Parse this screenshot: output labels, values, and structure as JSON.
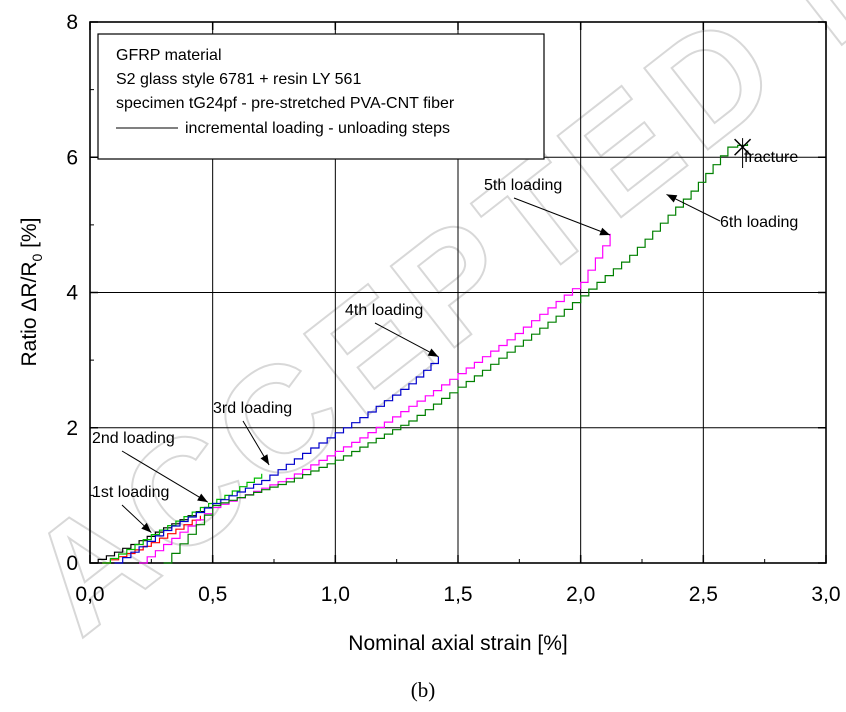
{
  "watermark": "ACCEPTED MANUSCRIPT",
  "caption": "(b)",
  "chart_data": {
    "type": "line",
    "xlabel": "Nominal axial strain [%]",
    "ylabel": "Ratio ΔR/R",
    "ylabel_sub": "0",
    "ylabel_unit": " [%]",
    "xlim": [
      0,
      3.0
    ],
    "ylim": [
      0,
      8
    ],
    "xticks": [
      0,
      0.5,
      1.0,
      1.5,
      2.0,
      2.5,
      3.0
    ],
    "xtick_labels": [
      "0,0",
      "0,5",
      "1,0",
      "1,5",
      "2,0",
      "2,5",
      "3,0"
    ],
    "yticks": [
      0,
      2,
      4,
      6,
      8
    ],
    "ytick_labels": [
      "0",
      "2",
      "4",
      "6",
      "8"
    ],
    "grid": true,
    "legend": {
      "placement": "top-left",
      "lines": [
        "GFRP material",
        "S2 glass style 6781 + resin LY 561",
        "specimen tG24pf - pre-stretched PVA-CNT fiber"
      ],
      "entry": "incremental loading - unloading steps"
    },
    "series": [
      {
        "color": "#000000",
        "points": [
          [
            0.0,
            0.0
          ],
          [
            0.1,
            0.16
          ],
          [
            0.2,
            0.33
          ],
          [
            0.3,
            0.52
          ],
          [
            0.4,
            0.7
          ],
          [
            0.5,
            0.88
          ]
        ]
      },
      {
        "color": "#ff0000",
        "points": [
          [
            0.05,
            0.0
          ],
          [
            0.15,
            0.14
          ],
          [
            0.25,
            0.3
          ],
          [
            0.35,
            0.5
          ],
          [
            0.45,
            0.7
          ]
        ]
      },
      {
        "color": "#00bb00",
        "points": [
          [
            0.05,
            0.0
          ],
          [
            0.15,
            0.2
          ],
          [
            0.25,
            0.42
          ],
          [
            0.35,
            0.62
          ],
          [
            0.45,
            0.82
          ],
          [
            0.55,
            1.0
          ],
          [
            0.7,
            1.32
          ]
        ]
      },
      {
        "color": "#0000cc",
        "points": [
          [
            0.1,
            0.0
          ],
          [
            0.3,
            0.48
          ],
          [
            0.5,
            0.88
          ],
          [
            0.7,
            1.22
          ],
          [
            0.9,
            1.7
          ],
          [
            1.1,
            2.15
          ],
          [
            1.3,
            2.65
          ],
          [
            1.42,
            3.05
          ]
        ]
      },
      {
        "color": "#ff00ff",
        "points": [
          [
            0.2,
            0.0
          ],
          [
            0.5,
            0.82
          ],
          [
            0.8,
            1.25
          ],
          [
            1.1,
            1.85
          ],
          [
            1.4,
            2.55
          ],
          [
            1.7,
            3.3
          ],
          [
            2.0,
            4.15
          ],
          [
            2.12,
            4.87
          ]
        ]
      },
      {
        "color": "#008000",
        "points": [
          [
            0.3,
            0.0
          ],
          [
            0.5,
            0.85
          ],
          [
            0.8,
            1.2
          ],
          [
            1.0,
            1.52
          ],
          [
            1.3,
            2.1
          ],
          [
            1.6,
            2.85
          ],
          [
            1.9,
            3.65
          ],
          [
            2.2,
            4.55
          ],
          [
            2.45,
            5.5
          ],
          [
            2.6,
            6.15
          ],
          [
            2.68,
            6.2
          ]
        ]
      }
    ],
    "annotations": [
      {
        "text": "1st loading",
        "target": [
          0.25,
          0.45
        ]
      },
      {
        "text": "2nd loading",
        "target": [
          0.48,
          0.9
        ]
      },
      {
        "text": "3rd loading",
        "target": [
          0.73,
          1.45
        ]
      },
      {
        "text": "4th loading",
        "target": [
          1.42,
          3.05
        ]
      },
      {
        "text": "5th loading",
        "target": [
          2.12,
          4.85
        ]
      },
      {
        "text": "6th loading",
        "target": [
          2.35,
          5.45
        ]
      },
      {
        "text": "fracture",
        "target": [
          2.66,
          6.15
        ]
      }
    ]
  }
}
